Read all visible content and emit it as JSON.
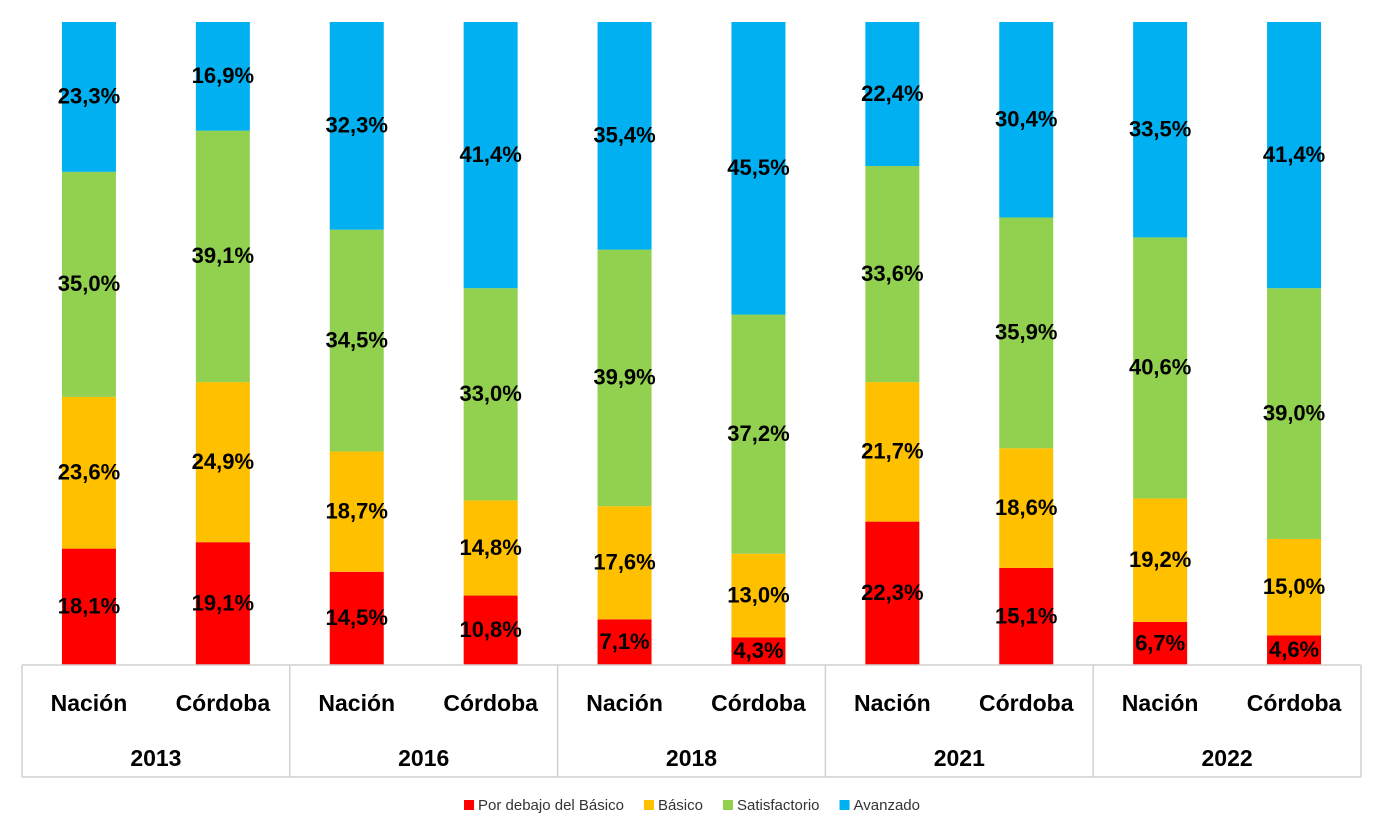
{
  "chart_data": {
    "type": "stacked-bar",
    "categories": [
      "Nación",
      "Córdoba",
      "Nación",
      "Córdoba",
      "Nación",
      "Córdoba",
      "Nación",
      "Córdoba",
      "Nación",
      "Córdoba"
    ],
    "groups": [
      "2013",
      "2016",
      "2018",
      "2021",
      "2022"
    ],
    "ylim": [
      0,
      100
    ],
    "series": [
      {
        "name": "Por debajo del Básico",
        "color": "#ff0000",
        "values": [
          18.1,
          19.1,
          14.5,
          10.8,
          7.1,
          4.3,
          22.3,
          15.1,
          6.7,
          4.6
        ],
        "value_labels": [
          "18,1%",
          "19,1%",
          "14,5%",
          "10,8%",
          "7,1%",
          "4,3%",
          "22,3%",
          "15,1%",
          "6,7%",
          "4,6%"
        ]
      },
      {
        "name": "Básico",
        "color": "#ffc000",
        "values": [
          23.6,
          24.9,
          18.7,
          14.8,
          17.6,
          13.0,
          21.7,
          18.6,
          19.2,
          15.0
        ],
        "value_labels": [
          "23,6%",
          "24,9%",
          "18,7%",
          "14,8%",
          "17,6%",
          "13,0%",
          "21,7%",
          "18,6%",
          "19,2%",
          "15,0%"
        ]
      },
      {
        "name": "Satisfactorio",
        "color": "#92d050",
        "values": [
          35.0,
          39.1,
          34.5,
          33.0,
          39.9,
          37.2,
          33.6,
          35.9,
          40.6,
          39.0
        ],
        "value_labels": [
          "35,0%",
          "39,1%",
          "34,5%",
          "33,0%",
          "39,9%",
          "37,2%",
          "33,6%",
          "35,9%",
          "40,6%",
          "39,0%"
        ]
      },
      {
        "name": "Avanzado",
        "color": "#00b0f0",
        "values": [
          23.3,
          16.9,
          32.3,
          41.4,
          35.4,
          45.5,
          22.4,
          30.4,
          33.5,
          41.4
        ],
        "value_labels": [
          "23,3%",
          "16,9%",
          "32,3%",
          "41,4%",
          "35,4%",
          "45,5%",
          "22,4%",
          "30,4%",
          "33,5%",
          "41,4%"
        ]
      }
    ],
    "legend": "bottom"
  }
}
